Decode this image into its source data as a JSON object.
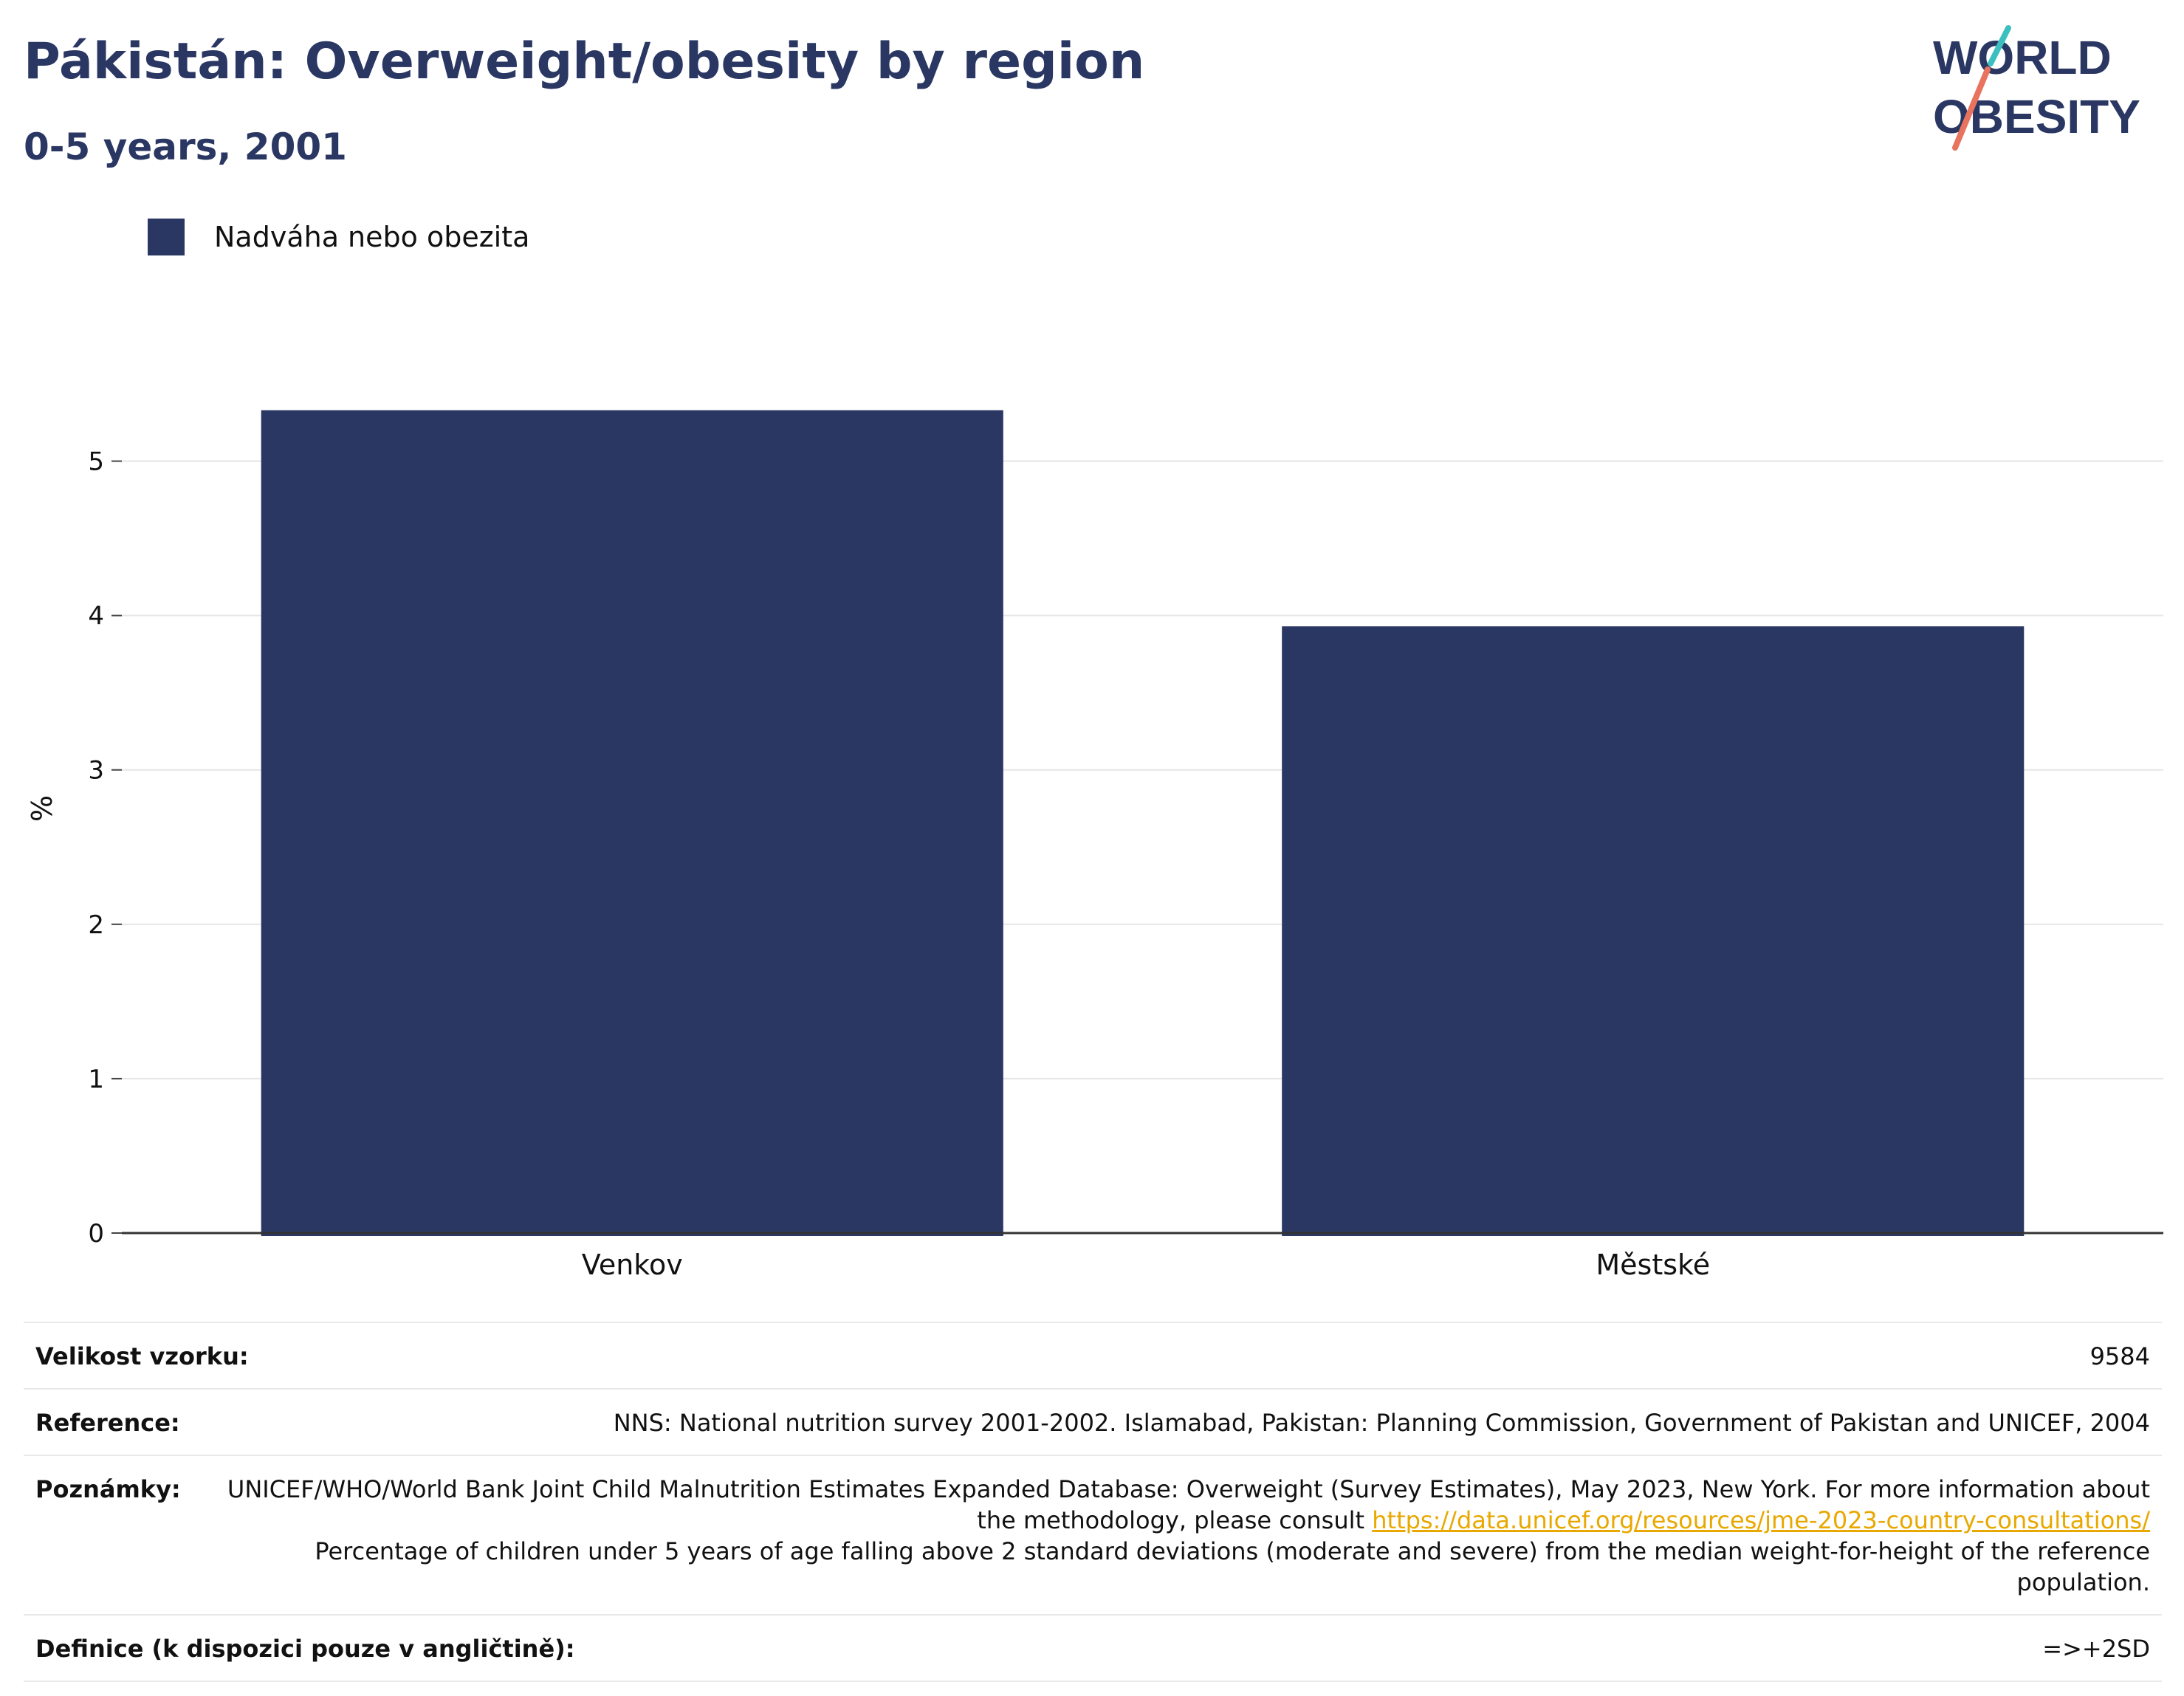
{
  "header": {
    "title": "Pákistán: Overweight/obesity by region",
    "subtitle": "0-5 years, 2001"
  },
  "logo": {
    "line1": "WORLD",
    "line2": "OBESITY",
    "colors": {
      "text": "#2a3763",
      "accent_teal": "#3bbfbf",
      "accent_coral": "#e8735f"
    }
  },
  "chart_data": {
    "type": "bar",
    "categories": [
      "Venkov",
      "Městské"
    ],
    "series": [
      {
        "name": "Nadváha nebo obezita",
        "values": [
          5.33,
          3.93
        ],
        "color": "#2a3763"
      }
    ],
    "ylabel": "%",
    "xlabel": "",
    "ylim": [
      0,
      5.5
    ],
    "yticks": [
      0,
      1,
      2,
      3,
      4,
      5
    ],
    "grid": true,
    "legend": "top-left"
  },
  "info": {
    "sample_size": {
      "label": "Velikost vzorku:",
      "value": "9584"
    },
    "reference": {
      "label": "Reference:",
      "value": "NNS: National nutrition survey 2001-2002. Islamabad, Pakistan: Planning Commission, Government of Pakistan and UNICEF, 2004"
    },
    "notes": {
      "label": "Poznámky:",
      "line1": "UNICEF/WHO/World Bank Joint Child Malnutrition Estimates Expanded Database: Overweight (Survey Estimates), May 2023, New York. For more information about the methodology, please consult",
      "link": "https://data.unicef.org/resources/jme-2023-country-consultations/",
      "line2": "Percentage of children under 5 years of age falling above 2 standard deviations (moderate and severe) from the median weight-for-height of the reference population."
    },
    "definition": {
      "label": "Definice (k dispozici pouze v angličtině):",
      "value": "=>+2SD"
    }
  }
}
